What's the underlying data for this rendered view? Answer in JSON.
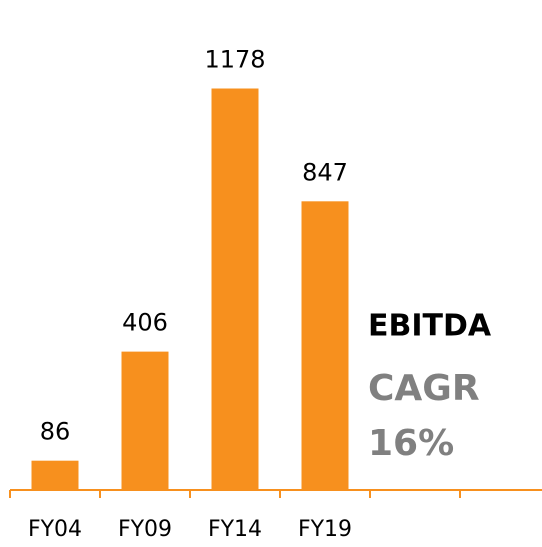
{
  "chart_data": {
    "type": "bar",
    "categories": [
      "FY04",
      "FY09",
      "FY14",
      "FY19",
      null,
      null
    ],
    "values": [
      86,
      406,
      1178,
      847,
      null,
      null
    ],
    "color": "#f7901e",
    "ylim": [
      0,
      1200
    ],
    "annotations": [
      "EBITDA",
      "CAGR",
      "16%"
    ]
  }
}
